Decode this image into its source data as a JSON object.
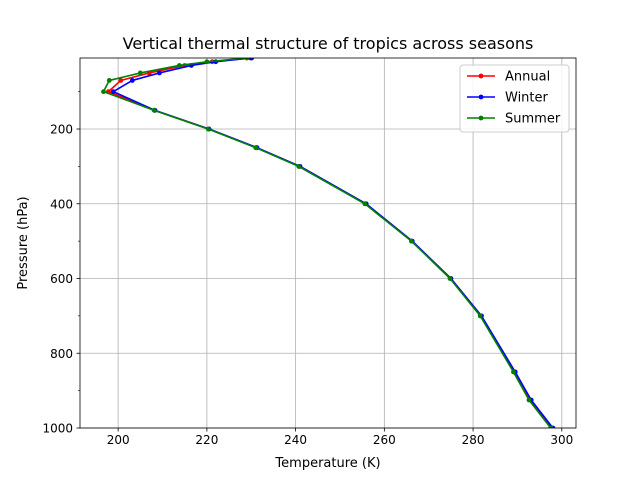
{
  "chart_data": {
    "type": "line",
    "title": "Vertical thermal structure of tropics across seasons",
    "xlabel": "Temperature (K)",
    "ylabel": "Pressure (hPa)",
    "xlim": [
      191.4,
      303.2
    ],
    "ylim": [
      1000,
      10
    ],
    "y_inverted": true,
    "grid": true,
    "legend_position": "upper right",
    "xticks": [
      200,
      220,
      240,
      260,
      280,
      300
    ],
    "xtick_labels": [
      "200",
      "220",
      "240",
      "260",
      "280",
      "300"
    ],
    "yticks": [
      200,
      400,
      600,
      800,
      1000
    ],
    "ytick_labels": [
      "200",
      "400",
      "600",
      "800",
      "1000"
    ],
    "y_minor_ticks": [
      100,
      300,
      500,
      700,
      900
    ],
    "pressure": [
      1000,
      925,
      850,
      700,
      600,
      500,
      400,
      300,
      250,
      200,
      150,
      100,
      70,
      50,
      30,
      20,
      10
    ],
    "series": [
      {
        "name": "Annual",
        "color": "#ff0000",
        "values": [
          297.8,
          292.9,
          289.4,
          281.8,
          275.0,
          266.2,
          255.8,
          240.9,
          231.2,
          220.4,
          208.2,
          197.8,
          200.6,
          207.0,
          215.0,
          221.2,
          229.8
        ]
      },
      {
        "name": "Winter",
        "color": "#0000ff",
        "values": [
          298.0,
          293.1,
          289.5,
          281.9,
          275.0,
          266.3,
          255.9,
          241.0,
          231.3,
          220.5,
          208.3,
          198.9,
          203.2,
          209.3,
          216.5,
          222.0,
          230.1
        ]
      },
      {
        "name": "Summer",
        "color": "#008000",
        "values": [
          297.5,
          292.6,
          289.1,
          281.6,
          274.8,
          266.1,
          255.6,
          240.7,
          231.0,
          220.3,
          208.1,
          196.7,
          198.0,
          205.0,
          213.8,
          220.0,
          229.0
        ]
      }
    ]
  }
}
